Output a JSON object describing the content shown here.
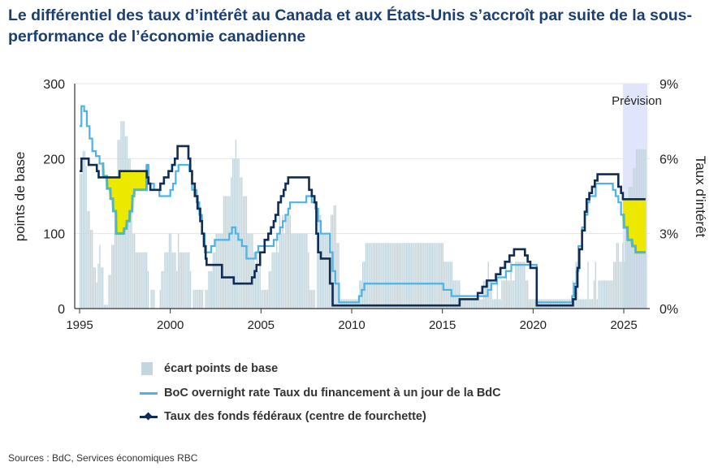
{
  "title": "Le différentiel des taux d’intérêt au Canada et aux États-Unis s’accroît par suite de la sous-performance de l’économie canadienne",
  "sources": "Sources : BdC, Services économiques RBC",
  "colors": {
    "bars": "#c3d6dd",
    "boc": "#4db3e6",
    "fed": "#0f2c55",
    "fill": "#ede800",
    "fill_edge": "#6cbf1a",
    "forecast": "#e1e5fb",
    "grid": "#e4e4e4"
  },
  "chart_data": {
    "type": "line",
    "title": "Le différentiel des taux d’intérêt au Canada et aux États-Unis s’accroît par suite de la sous-performance de l’économie canadienne",
    "ylabel": "points de base",
    "y2label": "Taux d'intérêt",
    "ylim": [
      0,
      300
    ],
    "y2lim": [
      0,
      9
    ],
    "yticks": [
      "0",
      "100",
      "200",
      "300"
    ],
    "y2ticks": [
      "0%",
      "3%",
      "6%",
      "9%"
    ],
    "xticks": [
      "1995",
      "2000",
      "2005",
      "2010",
      "2015",
      "2020",
      "2025"
    ],
    "xtick_values": [
      1995,
      2000,
      2005,
      2010,
      2015,
      2020,
      2025
    ],
    "xlim": [
      1994.9,
      2026.5
    ],
    "forecast": {
      "label": "Prévision",
      "start": 2024.95,
      "end": 2026.3
    },
    "legend": [
      "écart points de base",
      "BoC overnight rate Taux du financement à un jour de la BdC",
      "Taux des fonds fédéraux (centre de fourchette)"
    ],
    "legend_placement": "bottom",
    "series": [
      {
        "name": "BoC overnight rate Taux du financement à un jour de la BdC",
        "axis": "right",
        "points": [
          [
            1995.0,
            7.3
          ],
          [
            1995.1,
            8.1
          ],
          [
            1995.25,
            7.9
          ],
          [
            1995.4,
            7.3
          ],
          [
            1995.55,
            6.8
          ],
          [
            1995.7,
            6.3
          ],
          [
            1995.9,
            6.1
          ],
          [
            1996.1,
            5.8
          ],
          [
            1996.3,
            5.3
          ],
          [
            1996.5,
            4.8
          ],
          [
            1996.7,
            4.4
          ],
          [
            1996.85,
            3.9
          ],
          [
            1997.0,
            3.0
          ],
          [
            1997.45,
            3.2
          ],
          [
            1997.6,
            3.5
          ],
          [
            1997.75,
            3.9
          ],
          [
            1997.9,
            4.5
          ],
          [
            1998.0,
            4.75
          ],
          [
            1998.7,
            5.75
          ],
          [
            1998.8,
            5.0
          ],
          [
            1999.1,
            4.75
          ],
          [
            1999.4,
            4.5
          ],
          [
            2000.0,
            4.75
          ],
          [
            2000.15,
            5.0
          ],
          [
            2000.3,
            5.5
          ],
          [
            2000.45,
            5.75
          ],
          [
            2001.05,
            5.5
          ],
          [
            2001.2,
            4.75
          ],
          [
            2001.45,
            4.25
          ],
          [
            2001.6,
            3.75
          ],
          [
            2001.75,
            3.0
          ],
          [
            2001.9,
            2.25
          ],
          [
            2002.25,
            2.5
          ],
          [
            2002.45,
            2.75
          ],
          [
            2003.25,
            3.0
          ],
          [
            2003.4,
            3.25
          ],
          [
            2003.6,
            3.0
          ],
          [
            2003.75,
            2.75
          ],
          [
            2003.95,
            2.5
          ],
          [
            2004.2,
            2.0
          ],
          [
            2004.7,
            2.25
          ],
          [
            2004.85,
            2.5
          ],
          [
            2005.7,
            2.75
          ],
          [
            2005.9,
            3.0
          ],
          [
            2006.05,
            3.25
          ],
          [
            2006.2,
            3.5
          ],
          [
            2006.35,
            3.75
          ],
          [
            2006.5,
            4.0
          ],
          [
            2006.6,
            4.25
          ],
          [
            2007.5,
            4.5
          ],
          [
            2007.8,
            4.25
          ],
          [
            2008.0,
            4.0
          ],
          [
            2008.15,
            3.5
          ],
          [
            2008.3,
            3.0
          ],
          [
            2008.8,
            2.25
          ],
          [
            2008.95,
            1.5
          ],
          [
            2009.1,
            1.0
          ],
          [
            2009.3,
            0.25
          ],
          [
            2010.4,
            0.5
          ],
          [
            2010.55,
            0.75
          ],
          [
            2010.7,
            1.0
          ],
          [
            2015.05,
            0.75
          ],
          [
            2015.5,
            0.5
          ],
          [
            2017.5,
            0.75
          ],
          [
            2017.7,
            1.0
          ],
          [
            2018.0,
            1.25
          ],
          [
            2018.5,
            1.5
          ],
          [
            2018.8,
            1.75
          ],
          [
            2020.2,
            0.25
          ],
          [
            2022.15,
            0.5
          ],
          [
            2022.25,
            1.0
          ],
          [
            2022.4,
            1.5
          ],
          [
            2022.5,
            2.5
          ],
          [
            2022.7,
            3.25
          ],
          [
            2022.85,
            3.75
          ],
          [
            2023.0,
            4.25
          ],
          [
            2023.1,
            4.5
          ],
          [
            2023.45,
            5.0
          ],
          [
            2024.4,
            4.75
          ],
          [
            2024.55,
            4.5
          ],
          [
            2024.7,
            4.25
          ],
          [
            2024.85,
            3.75
          ],
          [
            2025.0,
            3.25
          ],
          [
            2025.2,
            2.75
          ],
          [
            2025.45,
            2.5
          ],
          [
            2025.65,
            2.25
          ],
          [
            2026.2,
            2.25
          ]
        ]
      },
      {
        "name": "Taux des fonds fédéraux (centre de fourchette)",
        "axis": "right",
        "points": [
          [
            1995.0,
            5.5
          ],
          [
            1995.1,
            6.0
          ],
          [
            1995.5,
            5.75
          ],
          [
            1995.95,
            5.5
          ],
          [
            1996.05,
            5.25
          ],
          [
            1997.2,
            5.5
          ],
          [
            1998.7,
            5.25
          ],
          [
            1998.8,
            5.0
          ],
          [
            1998.9,
            4.75
          ],
          [
            1999.45,
            5.0
          ],
          [
            1999.65,
            5.25
          ],
          [
            1999.9,
            5.5
          ],
          [
            2000.1,
            5.75
          ],
          [
            2000.25,
            6.0
          ],
          [
            2000.4,
            6.5
          ],
          [
            2001.0,
            6.0
          ],
          [
            2001.1,
            5.5
          ],
          [
            2001.2,
            5.0
          ],
          [
            2001.35,
            4.5
          ],
          [
            2001.5,
            4.0
          ],
          [
            2001.65,
            3.5
          ],
          [
            2001.75,
            3.0
          ],
          [
            2001.85,
            2.5
          ],
          [
            2001.95,
            2.0
          ],
          [
            2002.0,
            1.75
          ],
          [
            2002.85,
            1.25
          ],
          [
            2003.5,
            1.0
          ],
          [
            2004.5,
            1.25
          ],
          [
            2004.65,
            1.5
          ],
          [
            2004.75,
            1.75
          ],
          [
            2004.95,
            2.25
          ],
          [
            2005.2,
            2.75
          ],
          [
            2005.4,
            3.0
          ],
          [
            2005.55,
            3.25
          ],
          [
            2005.7,
            3.5
          ],
          [
            2005.8,
            3.75
          ],
          [
            2005.95,
            4.25
          ],
          [
            2006.1,
            4.5
          ],
          [
            2006.25,
            4.75
          ],
          [
            2006.35,
            5.0
          ],
          [
            2006.5,
            5.25
          ],
          [
            2007.65,
            4.75
          ],
          [
            2007.8,
            4.5
          ],
          [
            2007.95,
            4.25
          ],
          [
            2008.05,
            3.0
          ],
          [
            2008.15,
            2.25
          ],
          [
            2008.3,
            2.0
          ],
          [
            2008.8,
            1.0
          ],
          [
            2008.95,
            0.125
          ],
          [
            2015.95,
            0.375
          ],
          [
            2016.95,
            0.625
          ],
          [
            2017.2,
            0.875
          ],
          [
            2017.45,
            1.125
          ],
          [
            2017.95,
            1.375
          ],
          [
            2018.2,
            1.625
          ],
          [
            2018.45,
            1.875
          ],
          [
            2018.7,
            2.125
          ],
          [
            2018.95,
            2.375
          ],
          [
            2019.55,
            2.125
          ],
          [
            2019.7,
            1.875
          ],
          [
            2019.85,
            1.625
          ],
          [
            2020.2,
            0.125
          ],
          [
            2022.2,
            0.375
          ],
          [
            2022.35,
            0.875
          ],
          [
            2022.45,
            1.625
          ],
          [
            2022.55,
            2.375
          ],
          [
            2022.7,
            3.125
          ],
          [
            2022.85,
            3.875
          ],
          [
            2022.95,
            4.375
          ],
          [
            2023.1,
            4.625
          ],
          [
            2023.25,
            4.875
          ],
          [
            2023.4,
            5.125
          ],
          [
            2023.55,
            5.375
          ],
          [
            2024.7,
            4.875
          ],
          [
            2024.85,
            4.625
          ],
          [
            2024.95,
            4.375
          ],
          [
            2026.2,
            4.375
          ]
        ]
      }
    ],
    "bars": {
      "name": "écart points de base",
      "axis": "left",
      "definition": "abs(Fed - BoC) in basis points, monthly"
    }
  }
}
